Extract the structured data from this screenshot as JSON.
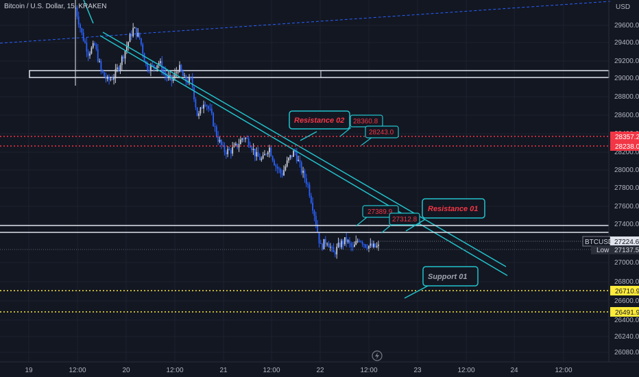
{
  "title": "Bitcoin / U.S. Dollar, 15, KRAKEN",
  "currency": "USD",
  "colors": {
    "bg": "#131722",
    "up": "#c8ccd6",
    "down": "#2962ff",
    "teal": "#22c3cc",
    "red": "#f23645",
    "yellow": "#ffeb3b",
    "white": "#e0e3eb",
    "calloutRed": "#f23645",
    "calloutGray": "#9ea3ad"
  },
  "chart_data": {
    "type": "candlestick",
    "symbol": "BTCUSD",
    "ylim": [
      26000,
      29800
    ],
    "x_ticks": [
      "19",
      "12:00",
      "20",
      "12:00",
      "21",
      "12:00",
      "22",
      "12:00",
      "23",
      "12:00",
      "24",
      "12:00"
    ],
    "y_ticks": [
      "29600.0",
      "29400.0",
      "29200.0",
      "29000.0",
      "28800.0",
      "28600.0",
      "28400.0",
      "28200.0",
      "28000.0",
      "27800.0",
      "27600.0",
      "27400.0",
      "27000.0",
      "26800.0",
      "26600.0",
      "26400.0",
      "26240.00",
      "26080.0"
    ],
    "price_path": [
      [
        29780,
        29500
      ],
      [
        29300,
        29380
      ],
      [
        29100,
        29000
      ],
      [
        29050,
        29200
      ],
      [
        29380,
        29560
      ],
      [
        29450,
        29150
      ],
      [
        29150,
        29200
      ],
      [
        29050,
        29000
      ],
      [
        29150,
        29000
      ],
      [
        29000,
        28600
      ],
      [
        28800,
        28650
      ],
      [
        28400,
        28250
      ],
      [
        28250,
        28300
      ],
      [
        28400,
        28350
      ],
      [
        28200,
        28150
      ],
      [
        28300,
        28100
      ],
      [
        28000,
        28150
      ],
      [
        28250,
        28050
      ],
      [
        27900,
        27600
      ],
      [
        27220,
        27300
      ],
      [
        27150,
        27250
      ],
      [
        27300,
        27200
      ],
      [
        27320,
        27250
      ],
      [
        27224,
        27224
      ]
    ],
    "last_price": "27224.6",
    "low_price": "27137.5",
    "low_label": "Low",
    "levels": {
      "resistance_dotted": [
        "28357.2",
        "28238.0"
      ],
      "support_dotted": [
        "26710.9",
        "26491.9"
      ],
      "horizontal_white": [
        "27385",
        "27305"
      ]
    },
    "tags": {
      "r2_top": "28360.8",
      "r2_bottom": "28243.0",
      "r1_top": "27389.9",
      "r1_bottom": "27312.8"
    },
    "callouts": {
      "resistance_02": "Resistance 02",
      "resistance_01": "Resistance 01",
      "support_01": "Support 01"
    }
  }
}
